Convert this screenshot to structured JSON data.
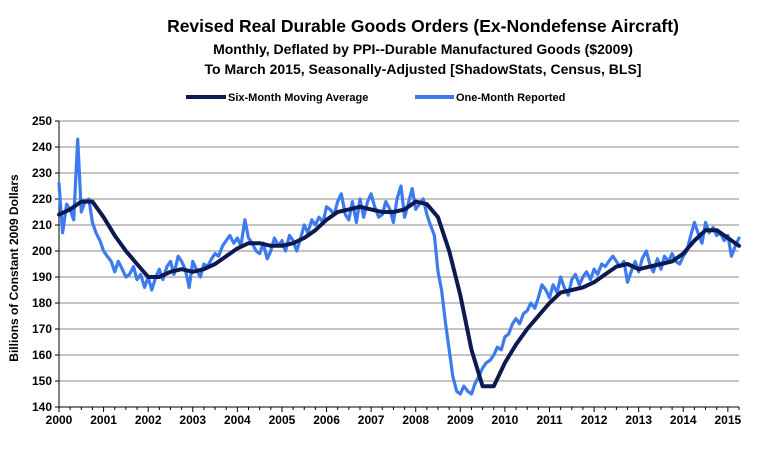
{
  "chart_data": {
    "type": "line",
    "title": "Revised Real Durable Goods Orders (Ex-Nondefense Aircraft)",
    "subtitle": "Monthly, Deflated by PPI--Durable Manufactured Goods ($2009)",
    "subtitle2": "To March 2015, Seasonally-Adjusted [ShadowStats, Census, BLS]",
    "xlabel": "",
    "ylabel": "Billions  of Constant 2009 Dollars",
    "xlim": [
      2000,
      2015.25
    ],
    "ylim": [
      140,
      250
    ],
    "yticks": [
      140,
      150,
      160,
      170,
      180,
      190,
      200,
      210,
      220,
      230,
      240,
      250
    ],
    "xticks": [
      2000,
      2001,
      2002,
      2003,
      2004,
      2005,
      2006,
      2007,
      2008,
      2009,
      2010,
      2011,
      2012,
      2013,
      2014,
      2015
    ],
    "xtick_labels": [
      "2000",
      "2001",
      "2002",
      "2003",
      "2004",
      "2005",
      "2006",
      "2007",
      "2008",
      "2009",
      "2010",
      "2011",
      "2012",
      "2013",
      "2014",
      "2015"
    ],
    "legend_position": "top",
    "series": [
      {
        "name": "Six-Month Moving Average",
        "color": "#0d1a4f",
        "points": [
          [
            2000.0,
            214
          ],
          [
            2000.25,
            216
          ],
          [
            2000.5,
            219
          ],
          [
            2000.75,
            219
          ],
          [
            2001.0,
            213
          ],
          [
            2001.25,
            206
          ],
          [
            2001.5,
            200
          ],
          [
            2001.75,
            195
          ],
          [
            2002.0,
            190
          ],
          [
            2002.25,
            190
          ],
          [
            2002.5,
            192
          ],
          [
            2002.75,
            193
          ],
          [
            2003.0,
            192
          ],
          [
            2003.25,
            193
          ],
          [
            2003.5,
            195
          ],
          [
            2003.75,
            198
          ],
          [
            2004.0,
            201
          ],
          [
            2004.25,
            203
          ],
          [
            2004.5,
            203
          ],
          [
            2004.75,
            202
          ],
          [
            2005.0,
            202
          ],
          [
            2005.25,
            203
          ],
          [
            2005.5,
            205
          ],
          [
            2005.75,
            208
          ],
          [
            2006.0,
            212
          ],
          [
            2006.25,
            215
          ],
          [
            2006.5,
            216
          ],
          [
            2006.75,
            217
          ],
          [
            2007.0,
            216
          ],
          [
            2007.25,
            215
          ],
          [
            2007.5,
            215
          ],
          [
            2007.75,
            216
          ],
          [
            2008.0,
            219
          ],
          [
            2008.25,
            218
          ],
          [
            2008.5,
            213
          ],
          [
            2008.75,
            200
          ],
          [
            2009.0,
            183
          ],
          [
            2009.25,
            162
          ],
          [
            2009.5,
            148
          ],
          [
            2009.75,
            148
          ],
          [
            2010.0,
            157
          ],
          [
            2010.25,
            164
          ],
          [
            2010.5,
            170
          ],
          [
            2010.75,
            175
          ],
          [
            2011.0,
            180
          ],
          [
            2011.25,
            184
          ],
          [
            2011.5,
            185
          ],
          [
            2011.75,
            186
          ],
          [
            2012.0,
            188
          ],
          [
            2012.25,
            191
          ],
          [
            2012.5,
            194
          ],
          [
            2012.75,
            195
          ],
          [
            2013.0,
            193
          ],
          [
            2013.25,
            194
          ],
          [
            2013.5,
            195
          ],
          [
            2013.75,
            196
          ],
          [
            2014.0,
            199
          ],
          [
            2014.25,
            204
          ],
          [
            2014.5,
            208
          ],
          [
            2014.75,
            208
          ],
          [
            2015.0,
            205
          ],
          [
            2015.25,
            202
          ]
        ]
      },
      {
        "name": "One-Month Reported",
        "color": "#3b7bef",
        "points": [
          [
            2000.0,
            226
          ],
          [
            2000.08,
            207
          ],
          [
            2000.17,
            218
          ],
          [
            2000.25,
            216
          ],
          [
            2000.33,
            212
          ],
          [
            2000.42,
            243
          ],
          [
            2000.5,
            215
          ],
          [
            2000.58,
            219
          ],
          [
            2000.67,
            220
          ],
          [
            2000.75,
            211
          ],
          [
            2000.83,
            207
          ],
          [
            2000.92,
            204
          ],
          [
            2001.0,
            200
          ],
          [
            2001.08,
            198
          ],
          [
            2001.17,
            196
          ],
          [
            2001.25,
            192
          ],
          [
            2001.33,
            196
          ],
          [
            2001.42,
            193
          ],
          [
            2001.5,
            190
          ],
          [
            2001.58,
            191
          ],
          [
            2001.67,
            194
          ],
          [
            2001.75,
            189
          ],
          [
            2001.83,
            191
          ],
          [
            2001.92,
            186
          ],
          [
            2002.0,
            190
          ],
          [
            2002.08,
            185
          ],
          [
            2002.17,
            190
          ],
          [
            2002.25,
            193
          ],
          [
            2002.33,
            189
          ],
          [
            2002.42,
            194
          ],
          [
            2002.5,
            196
          ],
          [
            2002.58,
            191
          ],
          [
            2002.67,
            198
          ],
          [
            2002.75,
            196
          ],
          [
            2002.83,
            193
          ],
          [
            2002.92,
            186
          ],
          [
            2003.0,
            196
          ],
          [
            2003.08,
            193
          ],
          [
            2003.17,
            190
          ],
          [
            2003.25,
            195
          ],
          [
            2003.33,
            194
          ],
          [
            2003.42,
            197
          ],
          [
            2003.5,
            199
          ],
          [
            2003.58,
            198
          ],
          [
            2003.67,
            202
          ],
          [
            2003.75,
            204
          ],
          [
            2003.83,
            206
          ],
          [
            2003.92,
            203
          ],
          [
            2004.0,
            205
          ],
          [
            2004.08,
            202
          ],
          [
            2004.17,
            212
          ],
          [
            2004.25,
            205
          ],
          [
            2004.33,
            203
          ],
          [
            2004.42,
            200
          ],
          [
            2004.5,
            199
          ],
          [
            2004.58,
            203
          ],
          [
            2004.67,
            197
          ],
          [
            2004.75,
            200
          ],
          [
            2004.83,
            205
          ],
          [
            2004.92,
            202
          ],
          [
            2005.0,
            204
          ],
          [
            2005.08,
            200
          ],
          [
            2005.17,
            206
          ],
          [
            2005.25,
            204
          ],
          [
            2005.33,
            200
          ],
          [
            2005.42,
            205
          ],
          [
            2005.5,
            210
          ],
          [
            2005.58,
            207
          ],
          [
            2005.67,
            212
          ],
          [
            2005.75,
            210
          ],
          [
            2005.83,
            213
          ],
          [
            2005.92,
            211
          ],
          [
            2006.0,
            217
          ],
          [
            2006.08,
            216
          ],
          [
            2006.17,
            214
          ],
          [
            2006.25,
            219
          ],
          [
            2006.33,
            222
          ],
          [
            2006.42,
            214
          ],
          [
            2006.5,
            212
          ],
          [
            2006.58,
            219
          ],
          [
            2006.67,
            211
          ],
          [
            2006.75,
            220
          ],
          [
            2006.83,
            213
          ],
          [
            2006.92,
            219
          ],
          [
            2007.0,
            222
          ],
          [
            2007.08,
            217
          ],
          [
            2007.17,
            213
          ],
          [
            2007.25,
            214
          ],
          [
            2007.33,
            219
          ],
          [
            2007.42,
            216
          ],
          [
            2007.5,
            211
          ],
          [
            2007.58,
            220
          ],
          [
            2007.67,
            225
          ],
          [
            2007.75,
            213
          ],
          [
            2007.83,
            218
          ],
          [
            2007.92,
            224
          ],
          [
            2008.0,
            216
          ],
          [
            2008.08,
            218
          ],
          [
            2008.17,
            220
          ],
          [
            2008.25,
            214
          ],
          [
            2008.33,
            210
          ],
          [
            2008.42,
            206
          ],
          [
            2008.5,
            192
          ],
          [
            2008.58,
            185
          ],
          [
            2008.67,
            172
          ],
          [
            2008.75,
            162
          ],
          [
            2008.83,
            152
          ],
          [
            2008.92,
            146
          ],
          [
            2009.0,
            145
          ],
          [
            2009.08,
            148
          ],
          [
            2009.17,
            146
          ],
          [
            2009.25,
            145
          ],
          [
            2009.33,
            149
          ],
          [
            2009.42,
            152
          ],
          [
            2009.5,
            155
          ],
          [
            2009.58,
            157
          ],
          [
            2009.67,
            158
          ],
          [
            2009.75,
            160
          ],
          [
            2009.83,
            163
          ],
          [
            2009.92,
            162
          ],
          [
            2010.0,
            167
          ],
          [
            2010.08,
            168
          ],
          [
            2010.17,
            172
          ],
          [
            2010.25,
            174
          ],
          [
            2010.33,
            172
          ],
          [
            2010.42,
            176
          ],
          [
            2010.5,
            177
          ],
          [
            2010.58,
            180
          ],
          [
            2010.67,
            178
          ],
          [
            2010.75,
            182
          ],
          [
            2010.83,
            187
          ],
          [
            2010.92,
            185
          ],
          [
            2011.0,
            182
          ],
          [
            2011.08,
            187
          ],
          [
            2011.17,
            184
          ],
          [
            2011.25,
            190
          ],
          [
            2011.33,
            186
          ],
          [
            2011.42,
            183
          ],
          [
            2011.5,
            189
          ],
          [
            2011.58,
            191
          ],
          [
            2011.67,
            187
          ],
          [
            2011.75,
            190
          ],
          [
            2011.83,
            192
          ],
          [
            2011.92,
            189
          ],
          [
            2012.0,
            193
          ],
          [
            2012.08,
            191
          ],
          [
            2012.17,
            195
          ],
          [
            2012.25,
            194
          ],
          [
            2012.33,
            196
          ],
          [
            2012.42,
            198
          ],
          [
            2012.5,
            196
          ],
          [
            2012.58,
            194
          ],
          [
            2012.67,
            196
          ],
          [
            2012.75,
            188
          ],
          [
            2012.83,
            192
          ],
          [
            2012.92,
            196
          ],
          [
            2013.0,
            192
          ],
          [
            2013.08,
            197
          ],
          [
            2013.17,
            200
          ],
          [
            2013.25,
            195
          ],
          [
            2013.33,
            192
          ],
          [
            2013.42,
            197
          ],
          [
            2013.5,
            193
          ],
          [
            2013.58,
            198
          ],
          [
            2013.67,
            196
          ],
          [
            2013.75,
            199
          ],
          [
            2013.83,
            196
          ],
          [
            2013.92,
            195
          ],
          [
            2014.0,
            198
          ],
          [
            2014.08,
            200
          ],
          [
            2014.17,
            206
          ],
          [
            2014.25,
            211
          ],
          [
            2014.33,
            207
          ],
          [
            2014.42,
            203
          ],
          [
            2014.5,
            211
          ],
          [
            2014.58,
            207
          ],
          [
            2014.67,
            209
          ],
          [
            2014.75,
            206
          ],
          [
            2014.83,
            207
          ],
          [
            2014.92,
            204
          ],
          [
            2015.0,
            206
          ],
          [
            2015.08,
            198
          ],
          [
            2015.17,
            202
          ],
          [
            2015.25,
            205
          ]
        ]
      }
    ]
  }
}
